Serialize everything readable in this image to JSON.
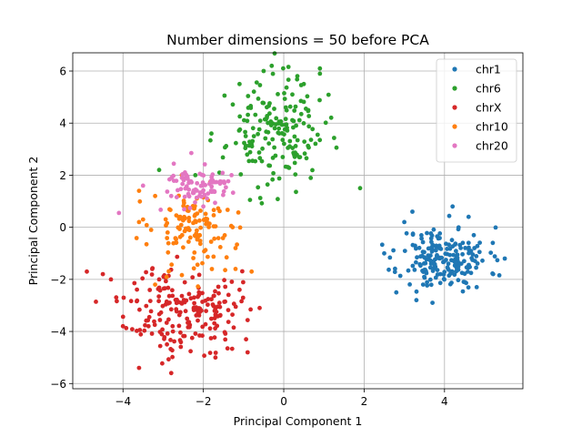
{
  "chart_data": {
    "type": "scatter",
    "title": "Number dimensions = 50 before PCA",
    "xlabel": "Principal Component 1",
    "ylabel": "Principal Component 2",
    "xlim": [
      -5.25,
      5.95
    ],
    "ylim": [
      -6.2,
      6.7
    ],
    "xticks": [
      -4,
      -2,
      0,
      2,
      4
    ],
    "yticks": [
      -6,
      -4,
      -2,
      0,
      2,
      4,
      6
    ],
    "xtick_labels": [
      "−4",
      "−2",
      "0",
      "2",
      "4"
    ],
    "ytick_labels": [
      "−6",
      "−4",
      "−2",
      "0",
      "2",
      "4",
      "6"
    ],
    "grid": true,
    "legend_position": "top-right",
    "series": [
      {
        "name": "chr1",
        "color": "#1f77b4",
        "center": [
          4.0,
          -1.2
        ],
        "spread": [
          0.55,
          0.6
        ],
        "n": 200,
        "seed": 11,
        "extra": [
          [
            2.5,
            -1.0
          ],
          [
            5.5,
            -1.2
          ],
          [
            3.3,
            -2.8
          ],
          [
            4.2,
            0.8
          ],
          [
            3.2,
            0.6
          ],
          [
            4.8,
            -2.3
          ],
          [
            2.8,
            -2.5
          ],
          [
            3.7,
            -2.9
          ],
          [
            4.6,
            0.4
          ],
          [
            5.2,
            -0.6
          ],
          [
            3.0,
            0.2
          ]
        ]
      },
      {
        "name": "chr6",
        "color": "#2ca02c",
        "center": [
          -0.2,
          3.6
        ],
        "spread": [
          0.6,
          1.0
        ],
        "n": 175,
        "seed": 23,
        "extra": [
          [
            1.9,
            1.5
          ],
          [
            -0.3,
            6.2
          ],
          [
            0.9,
            6.1
          ],
          [
            0.9,
            5.9
          ],
          [
            -2.2,
            2.0
          ],
          [
            -3.1,
            2.2
          ],
          [
            -1.6,
            2.1
          ],
          [
            -1.1,
            5.5
          ],
          [
            0.5,
            5.5
          ],
          [
            -0.5,
            6.0
          ],
          [
            -1.8,
            3.6
          ]
        ]
      },
      {
        "name": "chrX",
        "color": "#d62728",
        "center": [
          -2.5,
          -3.2
        ],
        "spread": [
          0.7,
          0.85
        ],
        "n": 200,
        "seed": 37,
        "extra": [
          [
            -4.9,
            -1.7
          ],
          [
            -4.0,
            -3.8
          ],
          [
            -3.6,
            -5.4
          ],
          [
            -2.8,
            -5.6
          ],
          [
            -1.1,
            -2.4
          ],
          [
            -0.9,
            -4.8
          ],
          [
            -0.6,
            -3.1
          ],
          [
            -4.3,
            -2.0
          ],
          [
            -1.7,
            -5.0
          ],
          [
            -4.5,
            -1.8
          ],
          [
            -3.1,
            -2.0
          ]
        ]
      },
      {
        "name": "chr10",
        "color": "#ff7f0e",
        "center": [
          -2.2,
          0.0
        ],
        "spread": [
          0.55,
          0.8
        ],
        "n": 120,
        "seed": 53,
        "extra": [
          [
            -3.5,
            0.3
          ],
          [
            -3.3,
            -0.1
          ],
          [
            -3.2,
            1.2
          ],
          [
            -3.6,
            1.4
          ],
          [
            -1.2,
            -1.6
          ],
          [
            -0.8,
            -1.7
          ],
          [
            -1.2,
            -0.8
          ],
          [
            -3.2,
            -2.2
          ],
          [
            -3.6,
            0.2
          ]
        ]
      },
      {
        "name": "chr20",
        "color": "#e377c2",
        "center": [
          -2.1,
          1.5
        ],
        "spread": [
          0.45,
          0.4
        ],
        "n": 85,
        "seed": 71,
        "extra": [
          [
            -4.1,
            0.55
          ],
          [
            -2.3,
            2.85
          ],
          [
            -3.5,
            1.6
          ],
          [
            -2.8,
            1.2
          ],
          [
            -1.3,
            2.0
          ],
          [
            -2.0,
            0.8
          ]
        ]
      }
    ]
  }
}
